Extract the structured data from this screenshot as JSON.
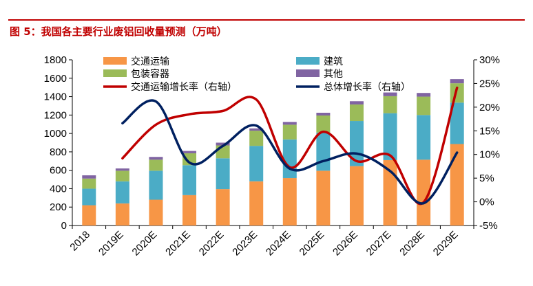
{
  "figure": {
    "title": "图 5：我国各主要行业废铝回收量预测（万吨）"
  },
  "colors": {
    "transport": "#F79646",
    "construction": "#4BACC6",
    "packaging": "#9BBB59",
    "other": "#8064A2",
    "transport_growth": "#C00000",
    "total_growth": "#002060",
    "accent": "#C00000"
  },
  "chart_data": {
    "type": "bar",
    "stacked": true,
    "title": "我国各主要行业废铝回收量预测（万吨）",
    "categories": [
      "2018",
      "2019E",
      "2020E",
      "2021E",
      "2022E",
      "2023E",
      "2024E",
      "2025E",
      "2026E",
      "2027E",
      "2028E",
      "2029E"
    ],
    "series": [
      {
        "name": "交通运输",
        "key": "transport",
        "axis": "left",
        "type": "bar",
        "values": [
          220,
          240,
          280,
          330,
          395,
          480,
          515,
          595,
          645,
          710,
          715,
          885
        ]
      },
      {
        "name": "建筑",
        "key": "construction",
        "axis": "left",
        "type": "bar",
        "values": [
          180,
          240,
          315,
          325,
          335,
          385,
          420,
          415,
          490,
          510,
          485,
          450
        ]
      },
      {
        "name": "包装容器",
        "key": "packaging",
        "axis": "left",
        "type": "bar",
        "values": [
          110,
          115,
          120,
          130,
          140,
          165,
          160,
          185,
          180,
          185,
          200,
          210
        ]
      },
      {
        "name": "其他",
        "key": "other",
        "axis": "left",
        "type": "bar",
        "values": [
          35,
          25,
          30,
          25,
          30,
          25,
          30,
          30,
          35,
          40,
          40,
          45
        ]
      },
      {
        "name": "交通运输增长率（右轴）",
        "key": "transport_growth",
        "axis": "right",
        "type": "line",
        "values": [
          null,
          9.2,
          16.3,
          18.5,
          19.2,
          21.6,
          7.3,
          14.8,
          8.6,
          9.8,
          -0.1,
          24.1
        ]
      },
      {
        "name": "总体增长率（右轴）",
        "key": "total_growth",
        "axis": "right",
        "type": "line",
        "values": [
          null,
          16.6,
          21.2,
          8.3,
          11.8,
          16.1,
          7.0,
          8.6,
          10.2,
          6.5,
          -0.3,
          10.4
        ]
      }
    ],
    "y_left": {
      "min": 0,
      "max": 1800,
      "step": 200,
      "ticks": [
        "0",
        "200",
        "400",
        "600",
        "800",
        "1000",
        "1200",
        "1400",
        "1600",
        "1800"
      ]
    },
    "y_right": {
      "min": -5,
      "max": 30,
      "step": 5,
      "ticks": [
        "-5%",
        "0%",
        "5%",
        "10%",
        "15%",
        "20%",
        "25%",
        "30%"
      ]
    },
    "legend": {
      "placement": "top",
      "items": [
        {
          "label": "交通运输",
          "key": "transport",
          "kind": "box"
        },
        {
          "label": "建筑",
          "key": "construction",
          "kind": "box"
        },
        {
          "label": "包装容器",
          "key": "packaging",
          "kind": "box"
        },
        {
          "label": "其他",
          "key": "other",
          "kind": "box"
        },
        {
          "label": "交通运输增长率（右轴）",
          "key": "transport_growth",
          "kind": "line"
        },
        {
          "label": "总体增长率（右轴）",
          "key": "total_growth",
          "kind": "line"
        }
      ]
    },
    "grid": false
  }
}
